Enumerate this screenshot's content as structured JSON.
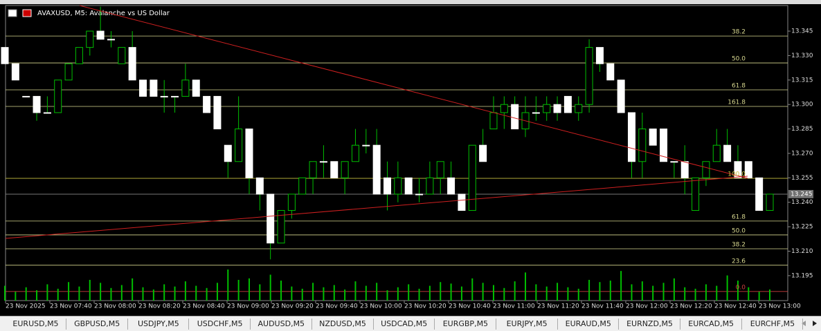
{
  "window_title": "AVAXUSD, M5:  Avalanche vs US Dollar",
  "chart_data": {
    "type": "candlestick",
    "ylim": [
      13.1797,
      13.3607
    ],
    "yticks": [
      13.345,
      {
        "value": 13.33,
        "label": "13.330"
      },
      13.315,
      {
        "value": 13.3,
        "label": "13.300"
      },
      13.285,
      {
        "value": 13.27,
        "label": "13.270"
      },
      13.255,
      {
        "value": 13.24,
        "label": "13.240"
      },
      13.225,
      {
        "value": 13.21,
        "label": "13.210"
      },
      13.195
    ],
    "xlabels": [
      "23 Nov 2025",
      "23 Nov 07:40",
      "23 Nov 08:00",
      "23 Nov 08:20",
      "23 Nov 08:40",
      "23 Nov 09:00",
      "23 Nov 09:20",
      "23 Nov 09:40",
      "23 Nov 10:00",
      "23 Nov 10:20",
      "23 Nov 10:40",
      "23 Nov 11:00",
      "23 Nov 11:20",
      "23 Nov 11:40",
      "23 Nov 12:00",
      "23 Nov 12:20",
      "23 Nov 12:40",
      "23 Nov 13:00"
    ],
    "up_color": "#000000",
    "down_color": "#ffffff",
    "wick_color": "#00c000",
    "volume_color": "#00c000",
    "ohlc": [
      [
        13.335,
        13.335,
        13.325,
        13.325
      ],
      [
        13.325,
        13.325,
        13.315,
        13.315
      ],
      [
        13.305,
        13.305,
        13.305,
        13.305
      ],
      [
        13.305,
        13.305,
        13.29,
        13.295
      ],
      [
        13.295,
        13.305,
        13.295,
        13.295
      ],
      [
        13.295,
        13.315,
        13.295,
        13.315
      ],
      [
        13.315,
        13.325,
        13.315,
        13.325
      ],
      [
        13.325,
        13.335,
        13.325,
        13.335
      ],
      [
        13.335,
        13.345,
        13.33,
        13.345
      ],
      [
        13.345,
        13.36,
        13.34,
        13.34
      ],
      [
        13.34,
        13.345,
        13.335,
        13.34
      ],
      [
        13.325,
        13.335,
        13.325,
        13.335
      ],
      [
        13.335,
        13.345,
        13.315,
        13.315
      ],
      [
        13.315,
        13.315,
        13.305,
        13.305
      ],
      [
        13.315,
        13.315,
        13.305,
        13.305
      ],
      [
        13.305,
        13.315,
        13.295,
        13.305
      ],
      [
        13.305,
        13.305,
        13.295,
        13.305
      ],
      [
        13.305,
        13.325,
        13.305,
        13.315
      ],
      [
        13.315,
        13.315,
        13.305,
        13.305
      ],
      [
        13.305,
        13.305,
        13.295,
        13.295
      ],
      [
        13.305,
        13.305,
        13.285,
        13.285
      ],
      [
        13.275,
        13.275,
        13.255,
        13.265
      ],
      [
        13.265,
        13.305,
        13.265,
        13.285
      ],
      [
        13.285,
        13.285,
        13.245,
        13.255
      ],
      [
        13.255,
        13.255,
        13.235,
        13.245
      ],
      [
        13.245,
        13.245,
        13.205,
        13.215
      ],
      [
        13.215,
        13.235,
        13.215,
        13.235
      ],
      [
        13.235,
        13.245,
        13.23,
        13.245
      ],
      [
        13.245,
        13.255,
        13.245,
        13.255
      ],
      [
        13.255,
        13.265,
        13.245,
        13.265
      ],
      [
        13.265,
        13.275,
        13.255,
        13.265
      ],
      [
        13.265,
        13.265,
        13.255,
        13.255
      ],
      [
        13.255,
        13.265,
        13.245,
        13.265
      ],
      [
        13.265,
        13.285,
        13.265,
        13.275
      ],
      [
        13.275,
        13.285,
        13.27,
        13.275
      ],
      [
        13.275,
        13.285,
        13.245,
        13.245
      ],
      [
        13.255,
        13.265,
        13.235,
        13.245
      ],
      [
        13.245,
        13.265,
        13.24,
        13.255
      ],
      [
        13.255,
        13.255,
        13.245,
        13.245
      ],
      [
        13.245,
        13.255,
        13.24,
        13.245
      ],
      [
        13.245,
        13.265,
        13.245,
        13.255
      ],
      [
        13.255,
        13.265,
        13.245,
        13.265
      ],
      [
        13.255,
        13.265,
        13.245,
        13.245
      ],
      [
        13.245,
        13.245,
        13.235,
        13.235
      ],
      [
        13.235,
        13.275,
        13.235,
        13.275
      ],
      [
        13.275,
        13.285,
        13.265,
        13.265
      ],
      [
        13.285,
        13.305,
        13.285,
        13.295
      ],
      [
        13.295,
        13.305,
        13.285,
        13.3
      ],
      [
        13.3,
        13.305,
        13.285,
        13.285
      ],
      [
        13.285,
        13.305,
        13.28,
        13.295
      ],
      [
        13.295,
        13.305,
        13.29,
        13.295
      ],
      [
        13.295,
        13.305,
        13.29,
        13.3
      ],
      [
        13.3,
        13.305,
        13.29,
        13.295
      ],
      [
        13.305,
        13.305,
        13.295,
        13.295
      ],
      [
        13.295,
        13.305,
        13.29,
        13.3
      ],
      [
        13.3,
        13.34,
        13.295,
        13.335
      ],
      [
        13.335,
        13.335,
        13.32,
        13.325
      ],
      [
        13.325,
        13.325,
        13.315,
        13.315
      ],
      [
        13.315,
        13.315,
        13.295,
        13.295
      ],
      [
        13.295,
        13.295,
        13.255,
        13.265
      ],
      [
        13.265,
        13.295,
        13.255,
        13.285
      ],
      [
        13.285,
        13.285,
        13.275,
        13.275
      ],
      [
        13.285,
        13.285,
        13.265,
        13.265
      ],
      [
        13.265,
        13.265,
        13.255,
        13.265
      ],
      [
        13.265,
        13.275,
        13.245,
        13.255
      ],
      [
        13.235,
        13.255,
        13.235,
        13.255
      ],
      [
        13.255,
        13.265,
        13.25,
        13.265
      ],
      [
        13.265,
        13.285,
        13.265,
        13.275
      ],
      [
        13.275,
        13.285,
        13.265,
        13.265
      ],
      [
        13.265,
        13.275,
        13.255,
        13.255
      ],
      [
        13.265,
        13.265,
        13.255,
        13.255
      ],
      [
        13.255,
        13.255,
        13.235,
        13.235
      ],
      [
        13.235,
        13.245,
        13.235,
        13.245
      ]
    ],
    "volumes": [
      20,
      12,
      18,
      14,
      22,
      16,
      25,
      19,
      28,
      24,
      17,
      21,
      30,
      18,
      15,
      22,
      19,
      26,
      20,
      17,
      24,
      42,
      28,
      30,
      22,
      35,
      27,
      19,
      16,
      24,
      18,
      21,
      15,
      26,
      20,
      24,
      14,
      18,
      22,
      16,
      20,
      25,
      23,
      19,
      30,
      24,
      21,
      17,
      26,
      38,
      22,
      19,
      24,
      18,
      16,
      28,
      25,
      27,
      40,
      22,
      26,
      20,
      24,
      30,
      18,
      16,
      22,
      20,
      34,
      27,
      18,
      12,
      15
    ],
    "fib_levels": [
      {
        "label": "38.2",
        "price": 13.342,
        "color": "#d8d890"
      },
      {
        "label": "50.0",
        "price": 13.3255,
        "color": "#d8d890"
      },
      {
        "label": "61.8",
        "price": 13.309,
        "color": "#d8d890"
      },
      {
        "label": "161.8",
        "price": 13.2988,
        "color": "#d8d890"
      },
      {
        "label": "100.0",
        "price": 13.2547,
        "color": "#c8c040"
      },
      {
        "label": "61.8",
        "price": 13.2285,
        "color": "#d8d890"
      },
      {
        "label": "50.0",
        "price": 13.22,
        "color": "#d8d890"
      },
      {
        "label": "38.2",
        "price": 13.2115,
        "color": "#d8d890"
      },
      {
        "label": "23.6",
        "price": 13.2014,
        "color": "#d8d890"
      },
      {
        "label": "0.0",
        "price": 13.1853,
        "color": "#d04040"
      }
    ],
    "last_price": {
      "value": 13.245,
      "label": "13.245"
    }
  },
  "tabs": [
    "EURUSD,M5",
    "GBPUSD,M5",
    "USDJPY,M5",
    "USDCHF,M5",
    "AUDUSD,M5",
    "NZDUSD,M5",
    "USDCAD,M5",
    "EURGBP,M5",
    "EURJPY,M5",
    "EURAUD,M5",
    "EURNZD,M5",
    "EURCAD,M5",
    "EURCHF,M5"
  ]
}
